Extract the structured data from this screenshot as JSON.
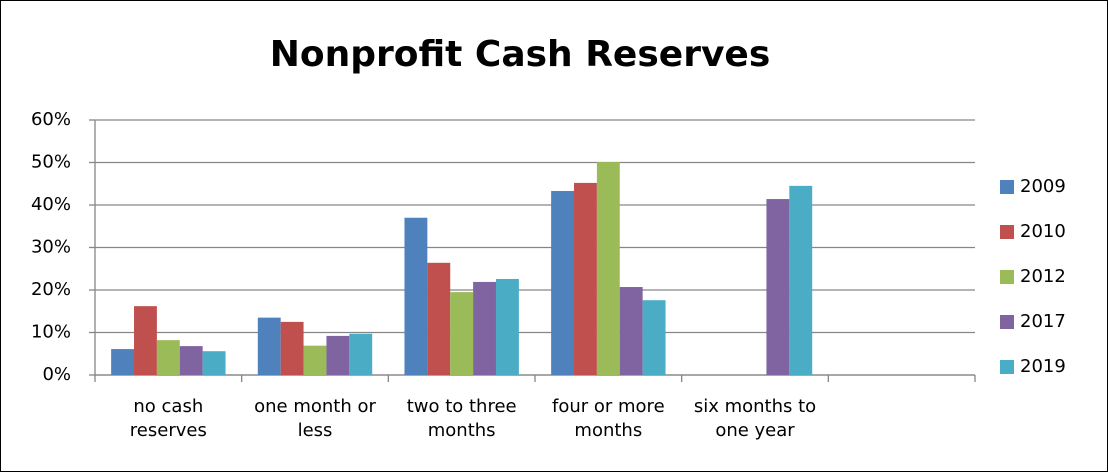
{
  "chart_data": {
    "type": "bar",
    "title": "Nonprofit Cash Reserves",
    "categories": [
      "no cash reserves",
      "one month or less",
      "two to three months",
      "four or more months",
      "six months to one year",
      null
    ],
    "series": [
      {
        "name": "2009",
        "color": "#4f81bd",
        "values": [
          6.1,
          13.5,
          37,
          43.3,
          null,
          null
        ]
      },
      {
        "name": "2010",
        "color": "#c0504d",
        "values": [
          16.2,
          12.5,
          26.4,
          45.2,
          null,
          null
        ]
      },
      {
        "name": "2012",
        "color": "#9bbb59",
        "values": [
          8.2,
          6.9,
          19.5,
          50.1,
          null,
          null
        ]
      },
      {
        "name": "2017",
        "color": "#8064a2",
        "values": [
          6.8,
          9.2,
          21.9,
          20.7,
          41.4,
          null
        ]
      },
      {
        "name": "2019",
        "color": "#4bacc6",
        "values": [
          5.6,
          9.7,
          22.6,
          17.6,
          44.5,
          null
        ]
      }
    ],
    "ylim": [
      0,
      60
    ],
    "yticks": [
      {
        "value": 0,
        "label": "0%"
      },
      {
        "value": 10,
        "label": "10%"
      },
      {
        "value": 20,
        "label": "20%"
      },
      {
        "value": 30,
        "label": "30%"
      },
      {
        "value": 40,
        "label": "40%"
      },
      {
        "value": 50,
        "label": "50%"
      },
      {
        "value": 60,
        "label": "60%"
      }
    ],
    "grid": true,
    "legend": "right"
  }
}
